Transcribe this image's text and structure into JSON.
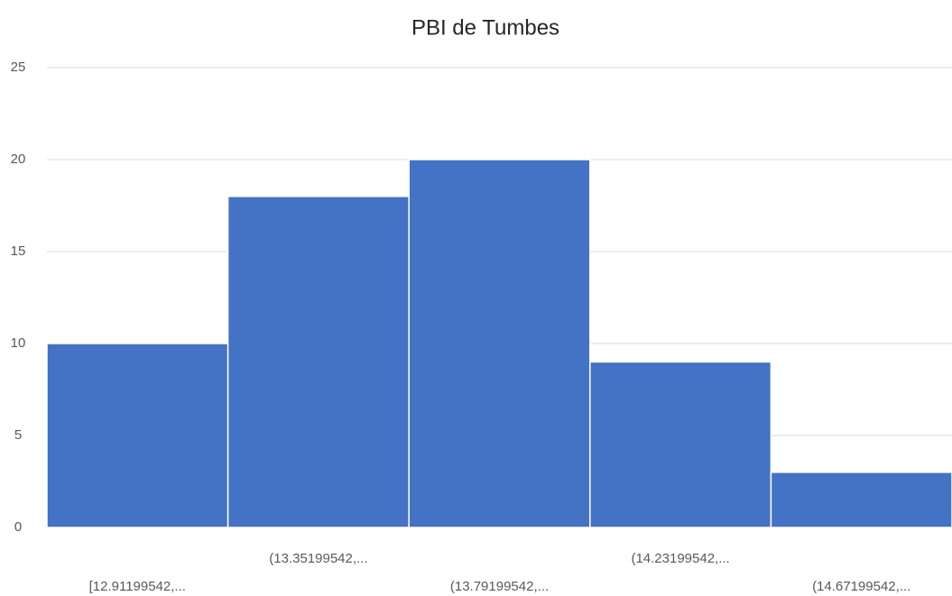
{
  "chart_data": {
    "type": "bar",
    "title": "PBI de Tumbes",
    "categories": [
      "[12.91199542,...",
      "(13.35199542,...",
      "(13.79199542,...",
      "(14.23199542,...",
      "(14.67199542,..."
    ],
    "values": [
      10,
      18,
      20,
      9,
      3
    ],
    "color": "#4472c4",
    "ylim": [
      0,
      25
    ],
    "yticks": [
      0,
      5,
      10,
      15,
      20,
      25
    ],
    "grid": true
  }
}
